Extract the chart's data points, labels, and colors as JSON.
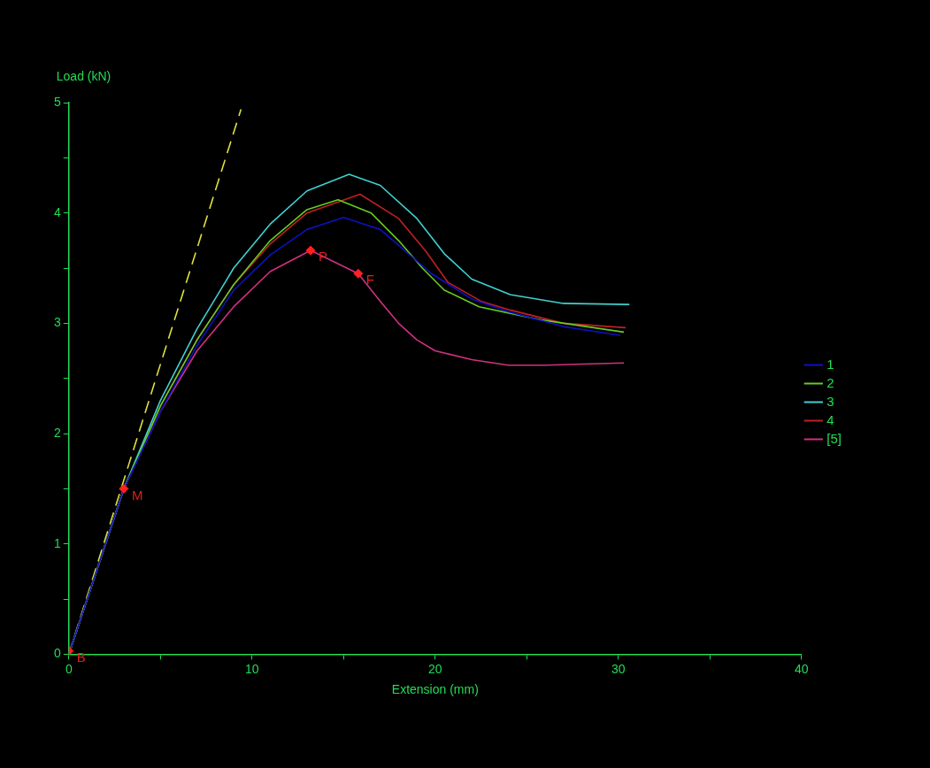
{
  "chart_data": {
    "type": "line",
    "xlabel": "Extension (mm)",
    "ylabel": "Load (kN)",
    "xlim": [
      0,
      40
    ],
    "xticks": [
      0,
      {
        "value": 5,
        "label": null
      },
      10,
      {
        "value": 15,
        "label": null
      },
      20,
      {
        "value": 25,
        "label": null
      },
      30,
      {
        "value": 35,
        "label": null
      },
      40
    ],
    "ylim": [
      0,
      5
    ],
    "yticks": [
      0,
      {
        "value": 0.5,
        "label": null
      },
      1,
      {
        "value": 1.5,
        "label": null
      },
      2,
      {
        "value": 2.5,
        "label": null
      },
      3,
      {
        "value": 3.5,
        "label": null
      },
      4,
      {
        "value": 4.5,
        "label": null
      },
      5
    ],
    "grid": false,
    "legend": "right",
    "marker": "none",
    "series": [
      {
        "name": "1",
        "color": "#1010c0",
        "x": [
          0,
          3,
          5,
          7,
          9,
          11,
          13,
          15,
          17,
          19.8,
          22,
          24.1,
          27,
          30.1
        ],
        "values": [
          0,
          1.5,
          2.2,
          2.8,
          3.3,
          3.62,
          3.85,
          3.96,
          3.85,
          3.45,
          3.22,
          3.1,
          2.97,
          2.89
        ]
      },
      {
        "name": "2",
        "color": "#66cc22",
        "x": [
          0,
          3,
          5,
          7,
          9,
          11,
          13,
          14.7,
          16.5,
          18,
          19.3,
          20.5,
          22.4,
          25.8,
          30.3
        ],
        "values": [
          0,
          1.5,
          2.25,
          2.85,
          3.35,
          3.75,
          4.03,
          4.12,
          4.0,
          3.75,
          3.5,
          3.3,
          3.15,
          3.03,
          2.92
        ]
      },
      {
        "name": "3",
        "color": "#40d0d0",
        "x": [
          0,
          3,
          5,
          7,
          9,
          11,
          13,
          15.3,
          17,
          19,
          20.5,
          22,
          24.1,
          27,
          30.6
        ],
        "values": [
          0,
          1.5,
          2.3,
          2.95,
          3.5,
          3.9,
          4.2,
          4.35,
          4.25,
          3.95,
          3.63,
          3.4,
          3.26,
          3.18,
          3.17
        ]
      },
      {
        "name": "4",
        "color": "#c02020",
        "x": [
          0,
          3,
          5,
          7,
          9,
          11,
          13,
          15.9,
          18,
          19.5,
          20.7,
          22.5,
          24.1,
          27,
          30.4
        ],
        "values": [
          0,
          1.5,
          2.25,
          2.85,
          3.35,
          3.72,
          4.0,
          4.17,
          3.95,
          3.65,
          3.37,
          3.2,
          3.12,
          3.0,
          2.96
        ]
      },
      {
        "name": "[5]",
        "color": "#d03080",
        "x": [
          0,
          3,
          5,
          7,
          9,
          11,
          13.2,
          15.8,
          17,
          18,
          19,
          20,
          22,
          24,
          26,
          28,
          30.3
        ],
        "values": [
          0,
          1.5,
          2.2,
          2.75,
          3.15,
          3.47,
          3.66,
          3.45,
          3.2,
          3.0,
          2.85,
          2.75,
          2.67,
          2.62,
          2.62,
          2.63,
          2.64
        ]
      },
      {
        "type": "line",
        "line_style": "dashed",
        "color": "#e0e040",
        "x": [
          0,
          9.4
        ],
        "values": [
          0,
          4.94
        ]
      },
      {
        "type": "scatter",
        "marker": "diamond",
        "color": "#ff2020",
        "x": [
          0,
          3,
          13.2,
          15.8
        ],
        "values": [
          0.03,
          1.5,
          3.66,
          3.45
        ]
      }
    ],
    "annotations": [
      {
        "text": "B",
        "x": 0,
        "y": 0.03
      },
      {
        "text": "M",
        "x": 3,
        "y": 1.5
      },
      {
        "text": "P",
        "x": 13.2,
        "y": 3.66
      },
      {
        "text": "F",
        "x": 15.8,
        "y": 3.45
      }
    ]
  }
}
